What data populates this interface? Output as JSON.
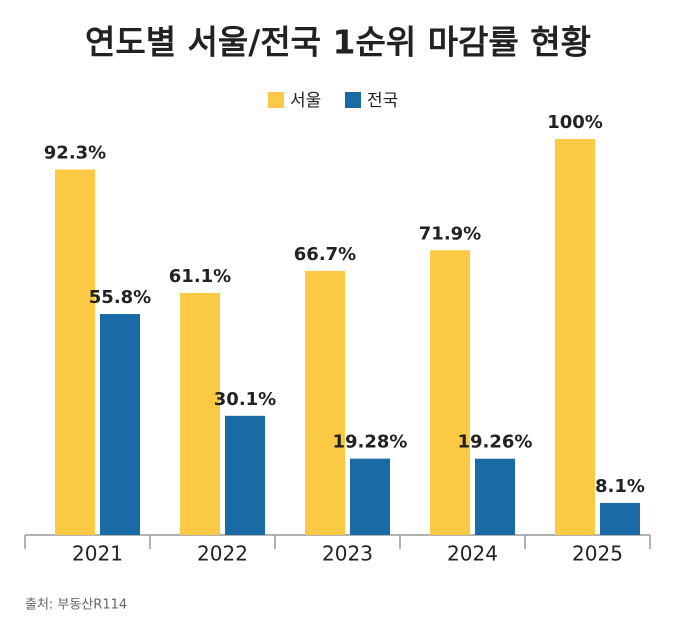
{
  "chart_data": {
    "type": "bar",
    "title": "연도별 서울/전국 1순위 마감률 현황",
    "categories": [
      "2021",
      "2022",
      "2023",
      "2024",
      "2025"
    ],
    "series": [
      {
        "name": "서울",
        "color": "#fcc945",
        "values": [
          92.3,
          61.1,
          66.7,
          71.9,
          100
        ],
        "value_labels": [
          "92.3%",
          "61.1%",
          "66.7%",
          "71.9%",
          "100%"
        ]
      },
      {
        "name": "전국",
        "color": "#1a6aa6",
        "values": [
          55.8,
          30.1,
          19.28,
          19.26,
          8.1
        ],
        "value_labels": [
          "55.8%",
          "30.1%",
          "19.28%",
          "19.26%",
          "8.1%"
        ]
      }
    ],
    "ylim": [
      0,
      100
    ],
    "source": "출처: 부동산R114"
  }
}
